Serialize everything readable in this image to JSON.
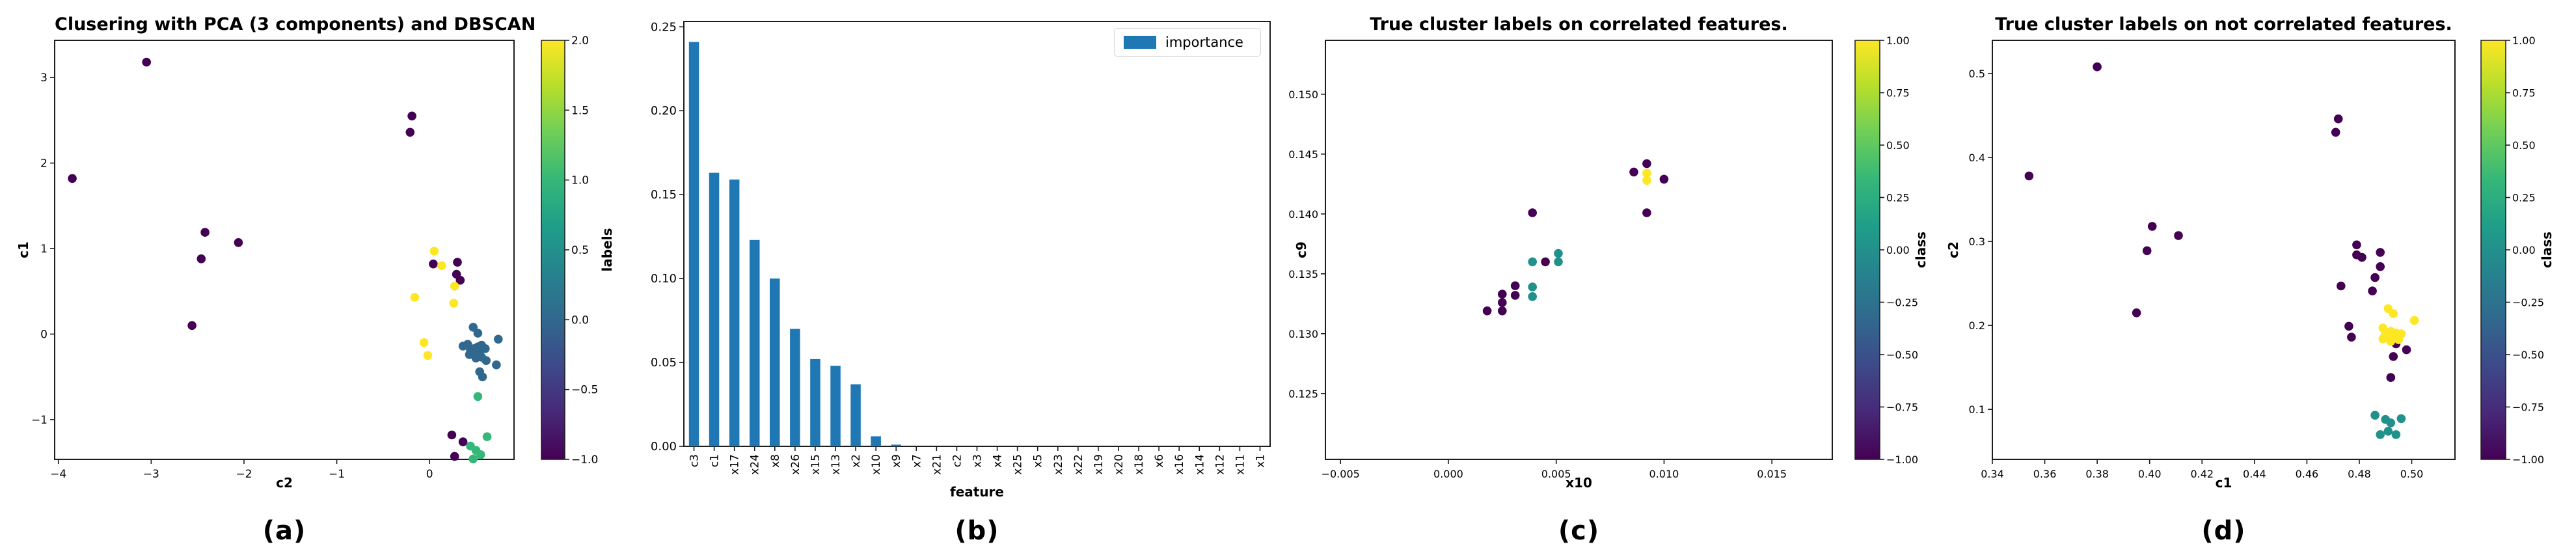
{
  "figure": {
    "background": "#ffffff",
    "tick_color": "#1c1c1c",
    "spine_color": "#1c1c1c"
  },
  "chart_data": [
    {
      "id": "a",
      "type": "scatter",
      "caption": "(a)",
      "title": "Clusering with PCA (3 components) and DBSCAN",
      "xlabel": "c2",
      "ylabel": "c1",
      "xlim": [
        -4.04,
        0.91
      ],
      "ylim": [
        -1.465,
        3.435
      ],
      "xticks": {
        "values": [
          -4,
          -3,
          -2,
          -1,
          0
        ],
        "labels": [
          "−4",
          "−3",
          "−2",
          "−1",
          "0"
        ]
      },
      "yticks": {
        "values": [
          -1,
          0,
          1,
          2,
          3
        ],
        "labels": [
          "−1",
          "0",
          "1",
          "2",
          "3"
        ]
      },
      "grid": false,
      "colorbar": {
        "label": "labels",
        "vmin": -1.0,
        "vmax": 2.0,
        "tick_values": [
          2.0,
          1.5,
          1.0,
          0.5,
          0.0,
          -0.5,
          -1.0
        ],
        "tick_labels": [
          "2.0",
          "1.5",
          "1.0",
          "0.5",
          "0.0",
          "−0.5",
          "−1.0"
        ]
      },
      "series": [
        {
          "name": "label -1",
          "color": "#440154",
          "points": [
            [
              -3.85,
              1.82
            ],
            [
              -3.05,
              3.18
            ],
            [
              -2.42,
              1.19
            ],
            [
              -2.46,
              0.88
            ],
            [
              -2.06,
              1.07
            ],
            [
              -2.56,
              0.1
            ],
            [
              -0.19,
              2.55
            ],
            [
              -0.21,
              2.36
            ],
            [
              0.04,
              0.82
            ],
            [
              0.3,
              0.84
            ],
            [
              0.29,
              0.7
            ],
            [
              0.33,
              0.63
            ],
            [
              0.24,
              -1.18
            ],
            [
              0.36,
              -1.26
            ],
            [
              0.27,
              -1.43
            ]
          ]
        },
        {
          "name": "label 0",
          "color": "#31688e",
          "points": [
            [
              0.47,
              0.08
            ],
            [
              0.52,
              0.01
            ],
            [
              0.74,
              -0.06
            ],
            [
              0.36,
              -0.14
            ],
            [
              0.41,
              -0.12
            ],
            [
              0.44,
              -0.19
            ],
            [
              0.48,
              -0.17
            ],
            [
              0.52,
              -0.15
            ],
            [
              0.56,
              -0.13
            ],
            [
              0.43,
              -0.24
            ],
            [
              0.47,
              -0.22
            ],
            [
              0.51,
              -0.21
            ],
            [
              0.55,
              -0.19
            ],
            [
              0.6,
              -0.17
            ],
            [
              0.5,
              -0.28
            ],
            [
              0.56,
              -0.27
            ],
            [
              0.61,
              -0.31
            ],
            [
              0.72,
              -0.36
            ],
            [
              0.54,
              -0.44
            ],
            [
              0.57,
              -0.5
            ]
          ]
        },
        {
          "name": "label 1",
          "color": "#35b779",
          "points": [
            [
              0.52,
              -0.73
            ],
            [
              0.62,
              -1.2
            ],
            [
              0.44,
              -1.31
            ],
            [
              0.5,
              -1.36
            ],
            [
              0.47,
              -1.46
            ],
            [
              0.55,
              -1.41
            ]
          ]
        },
        {
          "name": "label 2",
          "color": "#fde725",
          "points": [
            [
              0.05,
              0.97
            ],
            [
              0.13,
              0.8
            ],
            [
              -0.16,
              0.43
            ],
            [
              0.27,
              0.56
            ],
            [
              0.26,
              0.36
            ],
            [
              -0.06,
              -0.1
            ],
            [
              -0.02,
              -0.25
            ]
          ]
        }
      ]
    },
    {
      "id": "b",
      "type": "bar",
      "caption": "(b)",
      "title": "",
      "xlabel": "feature",
      "legend_label": "importance",
      "legend_position": "upper right",
      "bar_color": "#1f77b4",
      "ylim": [
        0,
        0.2532
      ],
      "yticks": {
        "values": [
          0.0,
          0.05,
          0.1,
          0.15,
          0.2,
          0.25
        ],
        "labels": [
          "0.00",
          "0.05",
          "0.10",
          "0.15",
          "0.20",
          "0.25"
        ]
      },
      "grid": false,
      "categories": [
        "c3",
        "c1",
        "x17",
        "x24",
        "x8",
        "x26",
        "x15",
        "x13",
        "x2",
        "x10",
        "x9",
        "x7",
        "x21",
        "c2",
        "x3",
        "x4",
        "x25",
        "x5",
        "x23",
        "x22",
        "x19",
        "x20",
        "x18",
        "x6",
        "x16",
        "x14",
        "x12",
        "x11",
        "x1"
      ],
      "values": [
        0.241,
        0.163,
        0.159,
        0.123,
        0.1,
        0.07,
        0.052,
        0.048,
        0.037,
        0.006,
        0.001,
        0,
        0,
        0,
        0,
        0,
        0,
        0,
        0,
        0,
        0,
        0,
        0,
        0,
        0,
        0,
        0,
        0,
        0
      ]
    },
    {
      "id": "c",
      "type": "scatter",
      "caption": "(c)",
      "title": "True cluster labels on correlated features.",
      "xlabel": "x10",
      "ylabel": "c9",
      "xlim": [
        -0.0057,
        0.0178
      ],
      "ylim": [
        0.1195,
        0.1545
      ],
      "xticks": {
        "values": [
          -0.005,
          0.0,
          0.005,
          0.01,
          0.015
        ],
        "labels": [
          "−0.005",
          "0.000",
          "0.005",
          "0.010",
          "0.015"
        ]
      },
      "yticks": {
        "values": [
          0.125,
          0.13,
          0.135,
          0.14,
          0.145,
          0.15
        ],
        "labels": [
          "0.125",
          "0.130",
          "0.135",
          "0.140",
          "0.145",
          "0.150"
        ]
      },
      "grid": false,
      "colorbar": {
        "label": "class",
        "vmin": -1.0,
        "vmax": 1.0,
        "tick_values": [
          1.0,
          0.75,
          0.5,
          0.25,
          0.0,
          -0.25,
          -0.5,
          -0.75,
          -1.0
        ],
        "tick_labels": [
          "1.00",
          "0.75",
          "0.50",
          "0.25",
          "0.00",
          "−0.25",
          "−0.50",
          "−0.75",
          "−1.00"
        ]
      },
      "series": [
        {
          "name": "class -1",
          "color": "#440154",
          "points": [
            [
              0.0086,
              0.1435
            ],
            [
              0.0092,
              0.1442
            ],
            [
              0.01,
              0.1429
            ],
            [
              0.0092,
              0.1401
            ],
            [
              0.0039,
              0.1401
            ],
            [
              0.0045,
              0.136
            ],
            [
              0.0031,
              0.134
            ],
            [
              0.0031,
              0.1332
            ],
            [
              0.0025,
              0.1333
            ],
            [
              0.0025,
              0.1326
            ],
            [
              0.0025,
              0.1319
            ],
            [
              0.0018,
              0.1319
            ]
          ]
        },
        {
          "name": "class 0",
          "color": "#21918c",
          "points": [
            [
              0.0039,
              0.136
            ],
            [
              0.0051,
              0.1367
            ],
            [
              0.0051,
              0.136
            ],
            [
              0.0039,
              0.1339
            ],
            [
              0.0039,
              0.1331
            ]
          ]
        },
        {
          "name": "class 1",
          "color": "#fde725",
          "points": [
            [
              0.0092,
              0.1434
            ],
            [
              0.0092,
              0.1428
            ]
          ]
        }
      ]
    },
    {
      "id": "d",
      "type": "scatter",
      "caption": "(d)",
      "title": "True cluster labels on not correlated features.",
      "xlabel": "c1",
      "ylabel": "c2",
      "xlim": [
        0.34,
        0.5165
      ],
      "ylim": [
        0.0405,
        0.5395
      ],
      "xticks": {
        "values": [
          0.34,
          0.36,
          0.38,
          0.4,
          0.42,
          0.44,
          0.46,
          0.48,
          0.5
        ],
        "labels": [
          "0.34",
          "0.36",
          "0.38",
          "0.40",
          "0.42",
          "0.44",
          "0.46",
          "0.48",
          "0.50"
        ]
      },
      "yticks": {
        "values": [
          0.1,
          0.2,
          0.3,
          0.4,
          0.5
        ],
        "labels": [
          "0.1",
          "0.2",
          "0.3",
          "0.4",
          "0.5"
        ]
      },
      "grid": false,
      "colorbar": {
        "label": "class",
        "vmin": -1.0,
        "vmax": 1.0,
        "tick_values": [
          1.0,
          0.75,
          0.5,
          0.25,
          0.0,
          -0.25,
          -0.5,
          -0.75,
          -1.0
        ],
        "tick_labels": [
          "1.00",
          "0.75",
          "0.50",
          "0.25",
          "0.00",
          "−0.25",
          "−0.50",
          "−0.75",
          "−1.00"
        ]
      },
      "series": [
        {
          "name": "class -1",
          "color": "#440154",
          "points": [
            [
              0.38,
              0.508
            ],
            [
              0.354,
              0.378
            ],
            [
              0.401,
              0.318
            ],
            [
              0.411,
              0.307
            ],
            [
              0.399,
              0.289
            ],
            [
              0.395,
              0.215
            ],
            [
              0.472,
              0.446
            ],
            [
              0.471,
              0.43
            ],
            [
              0.479,
              0.296
            ],
            [
              0.479,
              0.284
            ],
            [
              0.481,
              0.281
            ],
            [
              0.488,
              0.287
            ],
            [
              0.488,
              0.27
            ],
            [
              0.486,
              0.257
            ],
            [
              0.473,
              0.247
            ],
            [
              0.485,
              0.241
            ],
            [
              0.476,
              0.199
            ],
            [
              0.477,
              0.186
            ],
            [
              0.494,
              0.178
            ],
            [
              0.498,
              0.171
            ],
            [
              0.493,
              0.163
            ],
            [
              0.492,
              0.138
            ]
          ]
        },
        {
          "name": "class 0",
          "color": "#21918c",
          "points": [
            [
              0.486,
              0.093
            ],
            [
              0.49,
              0.088
            ],
            [
              0.492,
              0.084
            ],
            [
              0.496,
              0.089
            ],
            [
              0.488,
              0.07
            ],
            [
              0.491,
              0.074
            ],
            [
              0.494,
              0.07
            ]
          ]
        },
        {
          "name": "class 1",
          "color": "#fde725",
          "points": [
            [
              0.491,
              0.22
            ],
            [
              0.493,
              0.214
            ],
            [
              0.501,
              0.206
            ],
            [
              0.489,
              0.197
            ],
            [
              0.49,
              0.191
            ],
            [
              0.492,
              0.193
            ],
            [
              0.494,
              0.191
            ],
            [
              0.496,
              0.19
            ],
            [
              0.491,
              0.187
            ],
            [
              0.494,
              0.186
            ],
            [
              0.489,
              0.184
            ],
            [
              0.495,
              0.183
            ],
            [
              0.492,
              0.181
            ],
            [
              0.493,
              0.189
            ]
          ]
        }
      ]
    }
  ],
  "viridis_stops": [
    "#440154",
    "#482878",
    "#3e4989",
    "#31688e",
    "#26828e",
    "#1f9e89",
    "#35b779",
    "#6ece58",
    "#b5de2b",
    "#fde725"
  ]
}
